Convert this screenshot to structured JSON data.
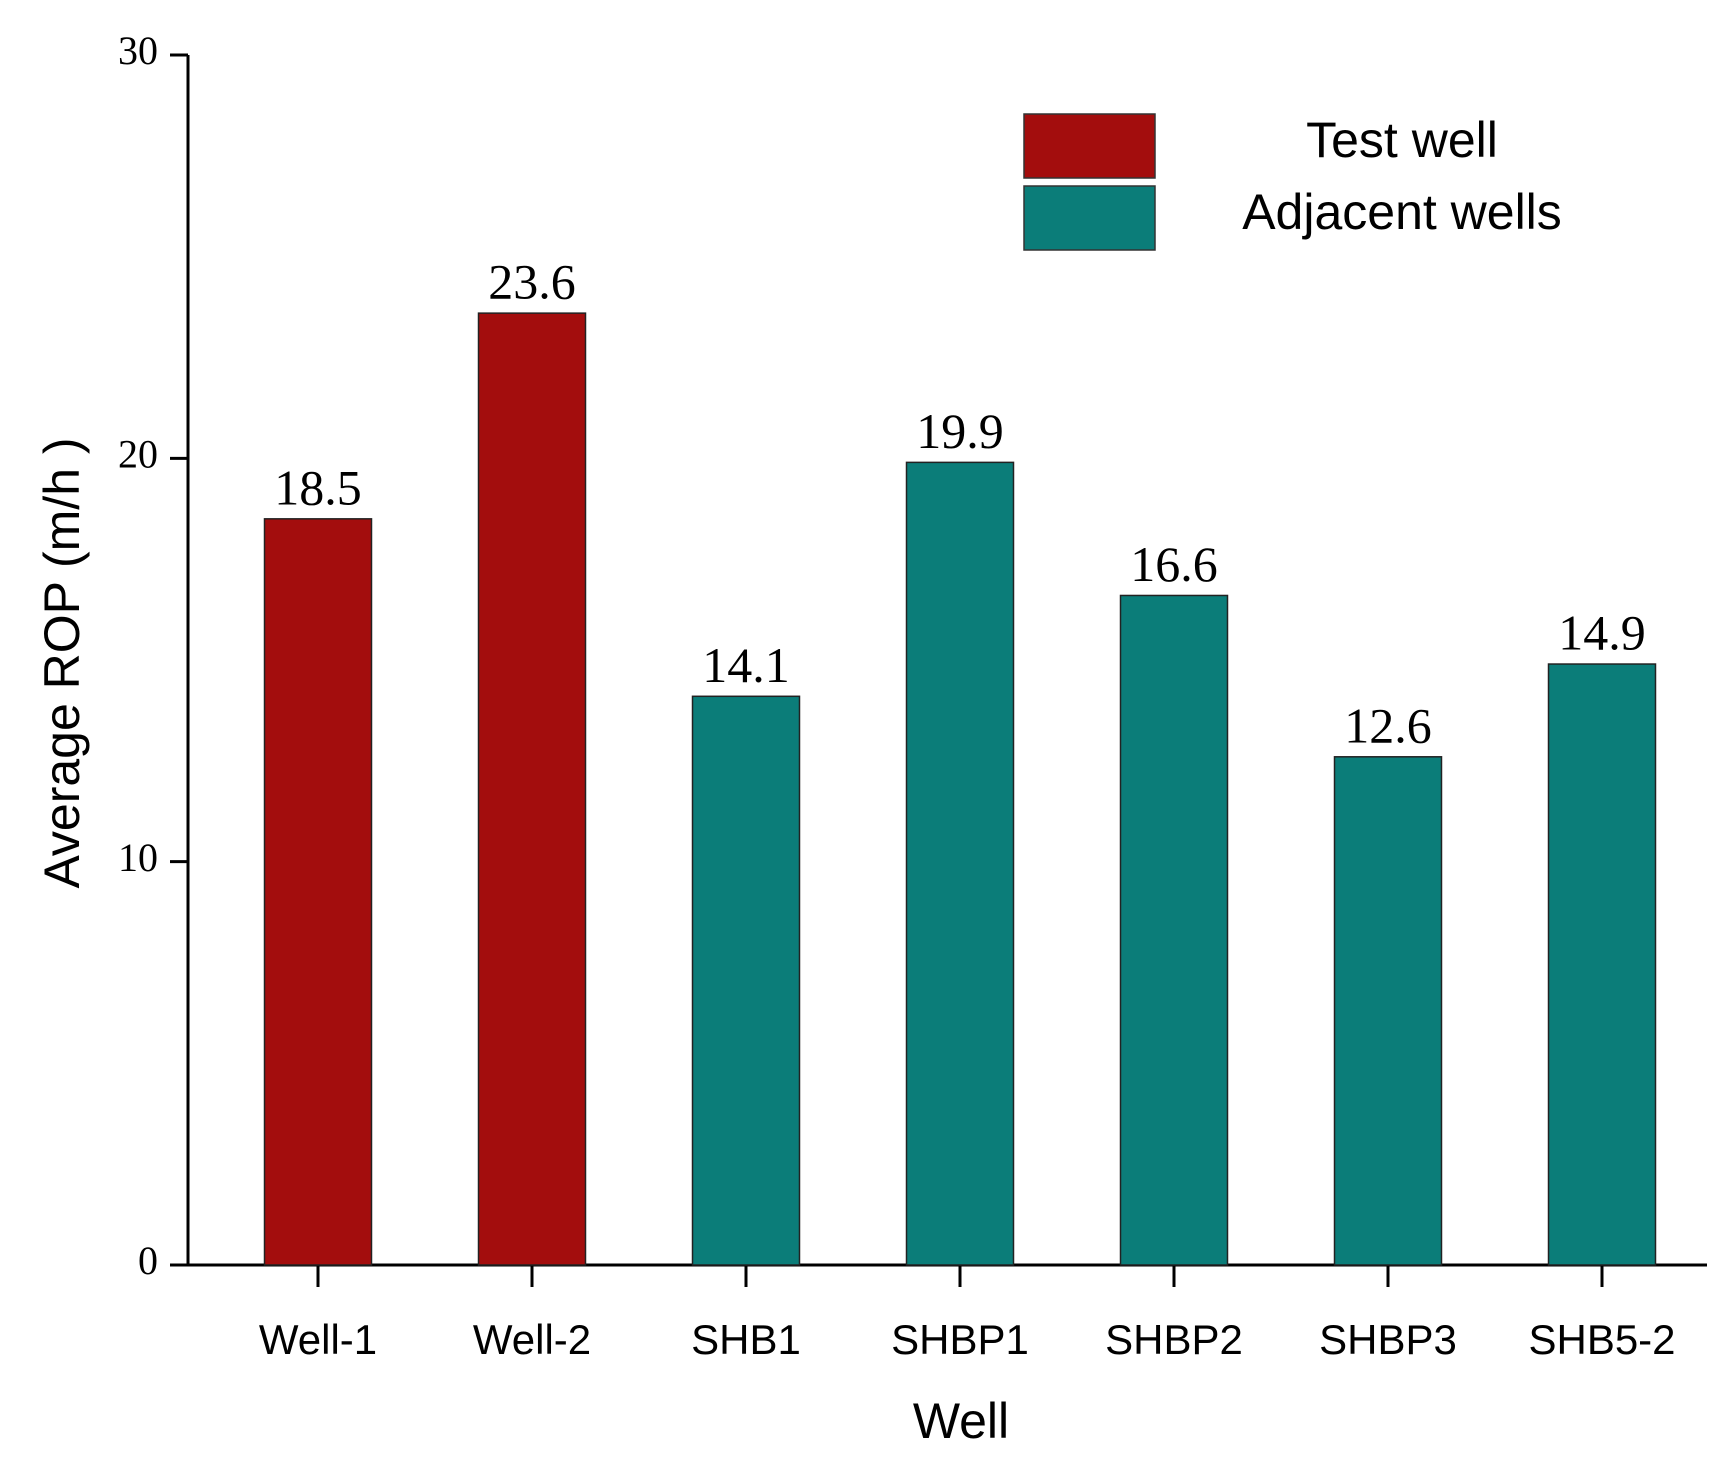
{
  "chart_data": {
    "type": "bar",
    "x_label": "Well",
    "y_label": "Average ROP (m/h )",
    "categories": [
      "Well-1",
      "Well-2",
      "SHB1",
      "SHBP1",
      "SHBP2",
      "SHBP3",
      "SHB5-2"
    ],
    "series": [
      {
        "name": "Test well",
        "color": "#a30d0d",
        "values": [
          18.5,
          23.6,
          null,
          null,
          null,
          null,
          null
        ]
      },
      {
        "name": "Adjacent wells",
        "color": "#0b7d79",
        "values": [
          null,
          null,
          14.1,
          19.9,
          16.6,
          12.6,
          14.9
        ]
      }
    ],
    "ylim": [
      0,
      30
    ],
    "yticks": [
      0,
      10,
      20,
      30
    ],
    "legend": "top-right"
  }
}
